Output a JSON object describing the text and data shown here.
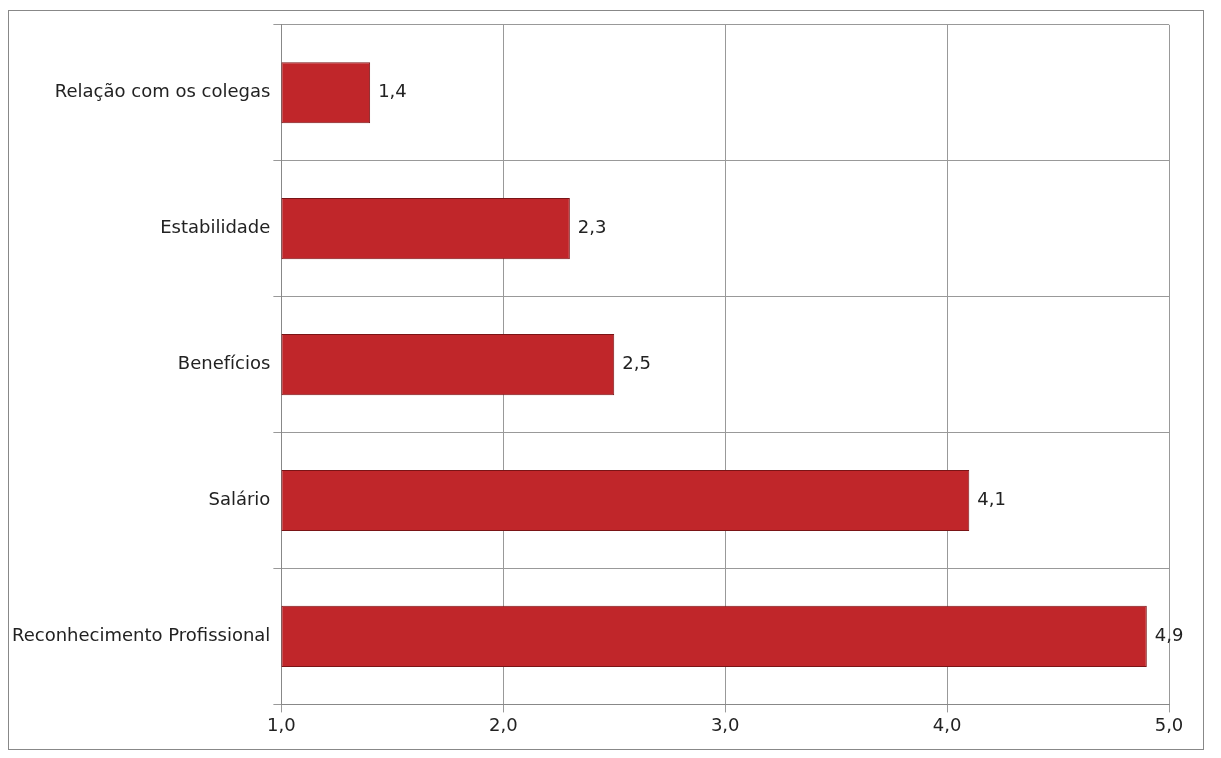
{
  "chart_data": {
    "type": "bar",
    "orientation": "horizontal",
    "categories": [
      "Relação com os colegas",
      "Estabilidade",
      "Benefícios",
      "Salário",
      "Reconhecimento Profissional"
    ],
    "values": [
      1.4,
      2.3,
      2.5,
      4.1,
      4.9
    ],
    "value_labels": [
      "1,4",
      "2,3",
      "2,5",
      "4,1",
      "4,9"
    ],
    "color": "#c0262a",
    "xlim": [
      1,
      5
    ],
    "xticks": [
      {
        "value": 1,
        "label": "1,0"
      },
      {
        "value": 2,
        "label": "2,0"
      },
      {
        "value": 3,
        "label": "3,0"
      },
      {
        "value": 4,
        "label": "4,0"
      },
      {
        "value": 5,
        "label": "5,0"
      }
    ],
    "grid": true,
    "legend": false
  }
}
